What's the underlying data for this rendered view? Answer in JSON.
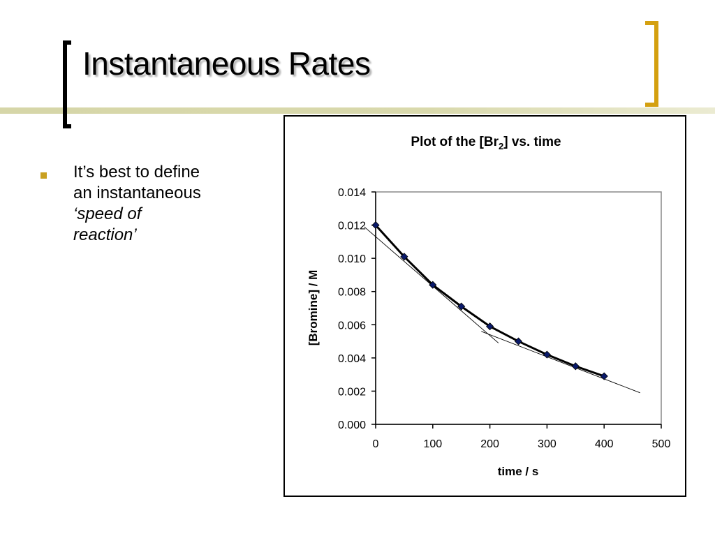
{
  "slide": {
    "title": "Instantaneous Rates",
    "bullet": {
      "lines": [
        "It’s best to define",
        "an instantaneous"
      ],
      "italic_lines": [
        "‘speed of",
        "reaction’"
      ]
    },
    "colors": {
      "bracket_left": "#000000",
      "bracket_right": "#d4a010",
      "bullet": "#c9a020",
      "marker": "#0a1a6a"
    }
  },
  "chart_data": {
    "type": "line",
    "title_prefix": "Plot of the [Br",
    "title_sub": "2",
    "title_suffix": "] vs. time",
    "xlabel": "time / s",
    "ylabel": "[Bromine] / M",
    "xlim": [
      0,
      500
    ],
    "ylim": [
      0,
      0.014
    ],
    "x_ticks": [
      "0",
      "100",
      "200",
      "300",
      "400",
      "500"
    ],
    "y_ticks": [
      "0.000",
      "0.002",
      "0.004",
      "0.006",
      "0.008",
      "0.010",
      "0.012",
      "0.014"
    ],
    "grid": false,
    "series": [
      {
        "x": [
          0,
          50,
          100,
          150,
          200,
          250,
          300,
          350,
          400
        ],
        "y": [
          0.012,
          0.0101,
          0.0084,
          0.0071,
          0.0059,
          0.005,
          0.0042,
          0.0035,
          0.0029
        ],
        "marker": "diamond"
      }
    ],
    "tangent_lines": [
      {
        "x": [
          -20,
          215
        ],
        "y": [
          0.0119,
          0.0049
        ]
      },
      {
        "x": [
          185,
          463
        ],
        "y": [
          0.0056,
          0.0019
        ]
      }
    ]
  }
}
